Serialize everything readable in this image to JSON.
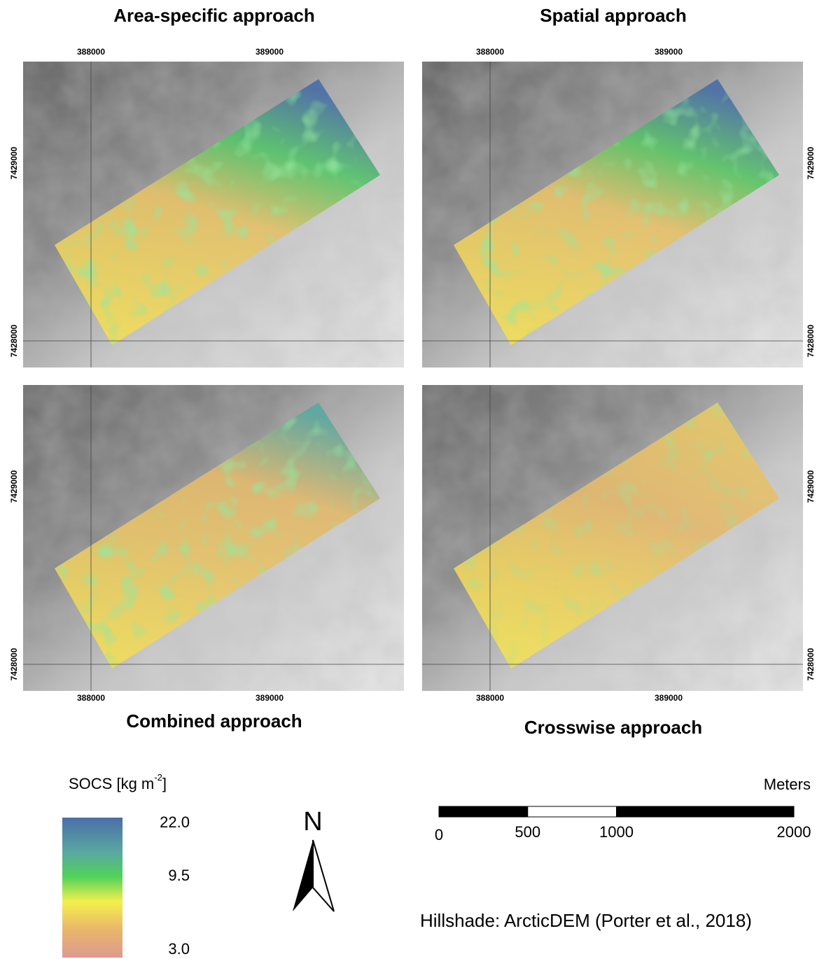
{
  "panels": [
    {
      "title": "Area-specific approach",
      "x_ticks": [
        "388000",
        "389000"
      ],
      "y_ticks": [
        "7429000",
        "7428000"
      ]
    },
    {
      "title": "Spatial approach",
      "x_ticks": [
        "388000",
        "389000"
      ],
      "y_ticks": [
        "7429000",
        "7428000"
      ]
    },
    {
      "title": "Combined approach",
      "x_ticks": [
        "388000",
        "389000"
      ],
      "y_ticks": [
        "7429000",
        "7428000"
      ]
    },
    {
      "title": "Crosswise approach",
      "x_ticks": [
        "388000",
        "389000"
      ],
      "y_ticks": [
        "7429000",
        "7428000"
      ]
    }
  ],
  "legend": {
    "title": "SOCS [kg m",
    "title_sup": "-2",
    "title_end": "]",
    "labels": [
      "22.0",
      "9.5",
      "3.0"
    ]
  },
  "north_arrow": {
    "label": "N"
  },
  "scale_bar": {
    "unit": "Meters",
    "ticks": [
      0,
      500,
      1000,
      2000
    ]
  },
  "credit": "Hillshade: ArcticDEM (Porter et al., 2018)"
}
